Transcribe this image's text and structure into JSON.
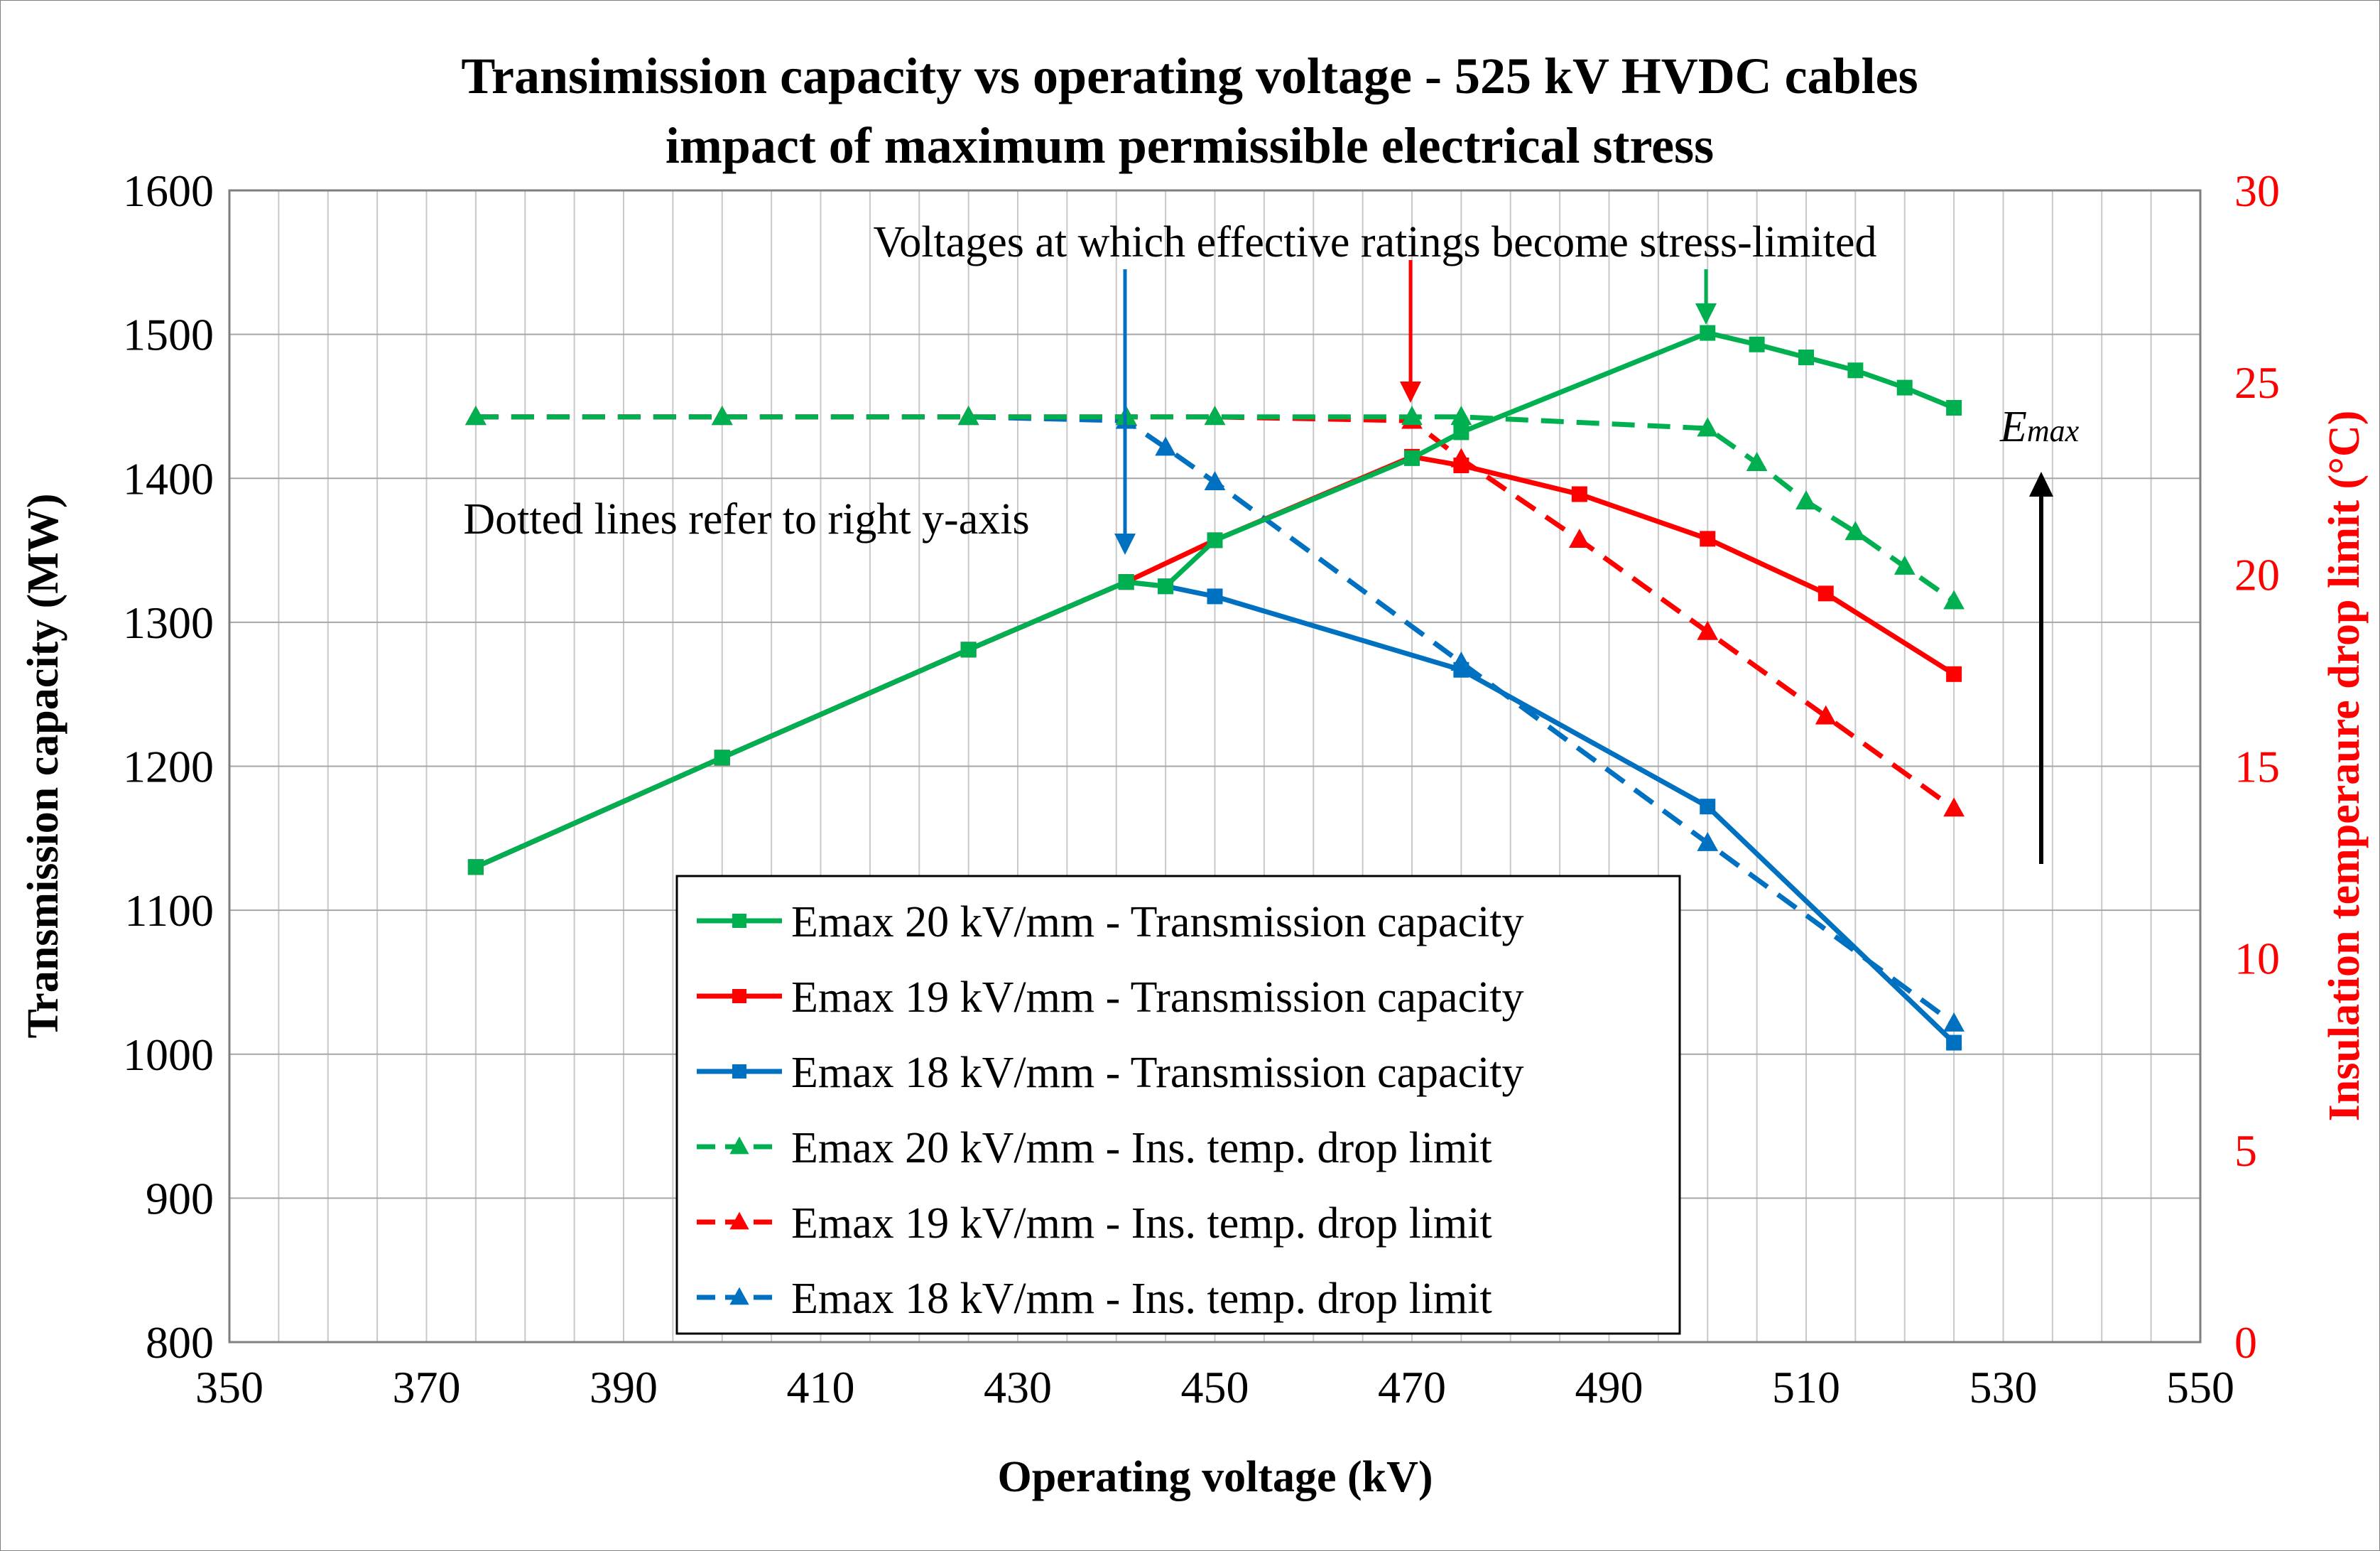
{
  "chart_data": {
    "type": "line",
    "title": [
      "Transimission capacity vs operating voltage - 525 kV HVDC cables",
      "impact of maximum permissible electrical stress"
    ],
    "xlabel": "Operating voltage (kV)",
    "ylabel": "Transmission capacity (MW)",
    "y2label": "Insulation temperaure drop limit (°C)",
    "xlim": [
      350,
      550
    ],
    "ylim": [
      800,
      1600
    ],
    "y2lim": [
      0,
      30
    ],
    "xticks": [
      350,
      370,
      390,
      410,
      430,
      450,
      470,
      490,
      510,
      530,
      550
    ],
    "yticks": [
      800,
      900,
      1000,
      1100,
      1200,
      1300,
      1400,
      1500,
      1600
    ],
    "y2ticks": [
      0,
      5,
      10,
      15,
      20,
      25,
      30
    ],
    "grid": true,
    "legend_position": "bottom-center",
    "colors": {
      "green": "#00b050",
      "red": "#ff0000",
      "blue": "#0070c0",
      "black": "#000000",
      "right_axis": "#ff0000"
    },
    "series": [
      {
        "name": "Emax 20 kV/mm - Transmission capacity",
        "axis": "left",
        "style": "solid",
        "marker": "square",
        "color": "#00b050",
        "x": [
          375,
          400,
          425,
          441,
          445,
          450,
          470,
          475,
          500,
          505,
          510,
          515,
          520,
          525
        ],
        "y": [
          1130,
          1206,
          1281,
          1328,
          1325,
          1357,
          1414,
          1432,
          1501,
          1493,
          1484,
          1475,
          1463,
          1449
        ]
      },
      {
        "name": "Emax 19 kV/mm - Transmission capacity",
        "axis": "left",
        "style": "solid",
        "marker": "square",
        "color": "#ff0000",
        "x": [
          375,
          400,
          425,
          441,
          450,
          470,
          475,
          487,
          500,
          512,
          525
        ],
        "y": [
          1130,
          1206,
          1281,
          1328,
          1357,
          1415,
          1409,
          1389,
          1358,
          1320,
          1264
        ]
      },
      {
        "name": "Emax 18 kV/mm - Transmission capacity",
        "axis": "left",
        "style": "solid",
        "marker": "square",
        "color": "#0070c0",
        "x": [
          375,
          400,
          425,
          441,
          445,
          450,
          475,
          500,
          525
        ],
        "y": [
          1130,
          1206,
          1281,
          1328,
          1325,
          1318,
          1267,
          1172,
          1008
        ]
      },
      {
        "name": "Emax 20 kV/mm - Ins. temp. drop limit",
        "axis": "right",
        "style": "dashed",
        "marker": "triangle",
        "color": "#00b050",
        "x": [
          375,
          400,
          425,
          441,
          450,
          470,
          475,
          500,
          505,
          510,
          515,
          520,
          525
        ],
        "y": [
          24.1,
          24.1,
          24.1,
          24.1,
          24.1,
          24.1,
          24.1,
          23.8,
          22.9,
          21.9,
          21.1,
          20.2,
          19.3
        ]
      },
      {
        "name": "Emax 19 kV/mm - Ins. temp. drop limit",
        "axis": "right",
        "style": "dashed",
        "marker": "triangle",
        "color": "#ff0000",
        "x": [
          375,
          400,
          425,
          441,
          450,
          470,
          475,
          487,
          500,
          512,
          525
        ],
        "y": [
          24.1,
          24.1,
          24.1,
          24.1,
          24.1,
          24.0,
          23.0,
          20.9,
          18.5,
          16.3,
          13.9
        ]
      },
      {
        "name": "Emax 18 kV/mm - Ins. temp. drop limit",
        "axis": "right",
        "style": "dashed",
        "marker": "triangle",
        "color": "#0070c0",
        "x": [
          375,
          400,
          425,
          441,
          445,
          450,
          475,
          500,
          525
        ],
        "y": [
          24.1,
          24.1,
          24.1,
          24.0,
          23.3,
          22.4,
          17.7,
          13.0,
          8.3
        ]
      }
    ],
    "annotations": {
      "stress_limited": "Voltages at which effective ratings become stress-limited",
      "dotted_lines": "Dotted lines refer to right y-axis",
      "emax": "E",
      "emax_sub": "max"
    }
  }
}
